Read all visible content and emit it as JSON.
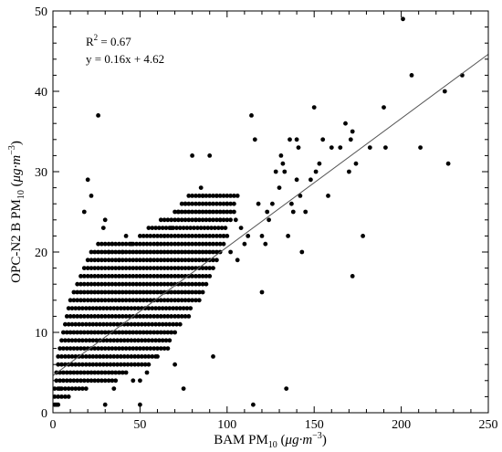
{
  "chart_data": {
    "type": "scatter",
    "xlabel": {
      "main": "BAM PM",
      "sub": "10",
      "unit_open": " (",
      "mu": "μ",
      "unit_mid": "g·m",
      "sup": "−3",
      "unit_close": ")"
    },
    "ylabel": {
      "main": "OPC-N2  B  PM",
      "sub": "10",
      "unit_open": " (",
      "mu": "μ",
      "unit_mid": "g·m",
      "sup": "−3",
      "unit_close": ")"
    },
    "xlim": [
      0,
      250
    ],
    "ylim": [
      0,
      50
    ],
    "xticks": [
      0,
      50,
      100,
      150,
      200,
      250
    ],
    "yticks": [
      0,
      10,
      20,
      30,
      40,
      50
    ],
    "xtick_labels": [
      "0",
      "50",
      "100",
      "150",
      "200",
      "250"
    ],
    "ytick_labels": [
      "0",
      "10",
      "20",
      "30",
      "40",
      "50"
    ],
    "annotation": {
      "r2_prefix": "R",
      "r2_sup": "2",
      "r2_value": " = 0.67",
      "equation": "y = 0.16x + 4.62"
    },
    "fit_line": {
      "slope": 0.16,
      "intercept": 4.62
    },
    "cluster_rows": [
      {
        "y": 1,
        "x_start": 1,
        "x_end": 4
      },
      {
        "y": 2,
        "x_start": 1,
        "x_end": 10
      },
      {
        "y": 3,
        "x_start": 1,
        "x_end": 20
      },
      {
        "y": 4,
        "x_start": 2,
        "x_end": 36
      },
      {
        "y": 5,
        "x_start": 2,
        "x_end": 42
      },
      {
        "y": 6,
        "x_start": 3,
        "x_end": 56
      },
      {
        "y": 7,
        "x_start": 3,
        "x_end": 60
      },
      {
        "y": 8,
        "x_start": 4,
        "x_end": 64
      },
      {
        "y": 9,
        "x_start": 5,
        "x_end": 68
      },
      {
        "y": 10,
        "x_start": 6,
        "x_end": 70
      },
      {
        "y": 11,
        "x_start": 7,
        "x_end": 74
      },
      {
        "y": 12,
        "x_start": 8,
        "x_end": 78
      },
      {
        "y": 13,
        "x_start": 9,
        "x_end": 80
      },
      {
        "y": 14,
        "x_start": 10,
        "x_end": 84
      },
      {
        "y": 15,
        "x_start": 12,
        "x_end": 86
      },
      {
        "y": 16,
        "x_start": 14,
        "x_end": 88
      },
      {
        "y": 17,
        "x_start": 16,
        "x_end": 90
      },
      {
        "y": 18,
        "x_start": 18,
        "x_end": 92
      },
      {
        "y": 19,
        "x_start": 20,
        "x_end": 94
      },
      {
        "y": 20,
        "x_start": 22,
        "x_end": 96
      },
      {
        "y": 21,
        "x_start": 26,
        "x_end": 98
      },
      {
        "y": 22,
        "x_start": 50,
        "x_end": 100
      },
      {
        "y": 23,
        "x_start": 55,
        "x_end": 100
      },
      {
        "y": 24,
        "x_start": 62,
        "x_end": 102
      },
      {
        "y": 25,
        "x_start": 70,
        "x_end": 104
      },
      {
        "y": 26,
        "x_start": 74,
        "x_end": 104
      },
      {
        "y": 27,
        "x_start": 78,
        "x_end": 106
      }
    ],
    "cluster_step": 2,
    "points": [
      {
        "x": 2,
        "y": 1
      },
      {
        "x": 4,
        "y": 3
      },
      {
        "x": 18,
        "y": 25
      },
      {
        "x": 20,
        "y": 29
      },
      {
        "x": 22,
        "y": 27
      },
      {
        "x": 26,
        "y": 37
      },
      {
        "x": 30,
        "y": 24
      },
      {
        "x": 32,
        "y": 20
      },
      {
        "x": 30,
        "y": 1
      },
      {
        "x": 50,
        "y": 4
      },
      {
        "x": 50,
        "y": 1
      },
      {
        "x": 42,
        "y": 22
      },
      {
        "x": 45,
        "y": 21
      },
      {
        "x": 38,
        "y": 19
      },
      {
        "x": 35,
        "y": 3
      },
      {
        "x": 75,
        "y": 3
      },
      {
        "x": 80,
        "y": 32
      },
      {
        "x": 90,
        "y": 32
      },
      {
        "x": 92,
        "y": 7
      },
      {
        "x": 85,
        "y": 28
      },
      {
        "x": 100,
        "y": 26
      },
      {
        "x": 105,
        "y": 24
      },
      {
        "x": 108,
        "y": 23
      },
      {
        "x": 110,
        "y": 21
      },
      {
        "x": 112,
        "y": 22
      },
      {
        "x": 114,
        "y": 37
      },
      {
        "x": 116,
        "y": 34
      },
      {
        "x": 118,
        "y": 26
      },
      {
        "x": 120,
        "y": 15
      },
      {
        "x": 115,
        "y": 1
      },
      {
        "x": 122,
        "y": 21
      },
      {
        "x": 120,
        "y": 22
      },
      {
        "x": 123,
        "y": 25
      },
      {
        "x": 124,
        "y": 24
      },
      {
        "x": 126,
        "y": 26
      },
      {
        "x": 128,
        "y": 30
      },
      {
        "x": 130,
        "y": 28
      },
      {
        "x": 131,
        "y": 32
      },
      {
        "x": 132,
        "y": 31
      },
      {
        "x": 133,
        "y": 30
      },
      {
        "x": 134,
        "y": 3
      },
      {
        "x": 135,
        "y": 22
      },
      {
        "x": 136,
        "y": 34
      },
      {
        "x": 137,
        "y": 26
      },
      {
        "x": 138,
        "y": 25
      },
      {
        "x": 140,
        "y": 29
      },
      {
        "x": 140,
        "y": 34
      },
      {
        "x": 141,
        "y": 33
      },
      {
        "x": 142,
        "y": 27
      },
      {
        "x": 143,
        "y": 20
      },
      {
        "x": 145,
        "y": 25
      },
      {
        "x": 148,
        "y": 29
      },
      {
        "x": 150,
        "y": 38
      },
      {
        "x": 151,
        "y": 30
      },
      {
        "x": 153,
        "y": 31
      },
      {
        "x": 155,
        "y": 34
      },
      {
        "x": 158,
        "y": 27
      },
      {
        "x": 160,
        "y": 33
      },
      {
        "x": 165,
        "y": 33
      },
      {
        "x": 168,
        "y": 36
      },
      {
        "x": 170,
        "y": 30
      },
      {
        "x": 171,
        "y": 34
      },
      {
        "x": 172,
        "y": 35
      },
      {
        "x": 172,
        "y": 17
      },
      {
        "x": 174,
        "y": 31
      },
      {
        "x": 178,
        "y": 22
      },
      {
        "x": 182,
        "y": 33
      },
      {
        "x": 190,
        "y": 38
      },
      {
        "x": 191,
        "y": 33
      },
      {
        "x": 201,
        "y": 49
      },
      {
        "x": 206,
        "y": 42
      },
      {
        "x": 211,
        "y": 33
      },
      {
        "x": 225,
        "y": 40
      },
      {
        "x": 227,
        "y": 31
      },
      {
        "x": 235,
        "y": 42
      },
      {
        "x": 29,
        "y": 23
      },
      {
        "x": 34,
        "y": 21
      },
      {
        "x": 40,
        "y": 20
      },
      {
        "x": 56,
        "y": 19
      },
      {
        "x": 60,
        "y": 21
      },
      {
        "x": 64,
        "y": 22
      },
      {
        "x": 68,
        "y": 23
      },
      {
        "x": 72,
        "y": 25
      },
      {
        "x": 76,
        "y": 26
      },
      {
        "x": 82,
        "y": 24
      },
      {
        "x": 86,
        "y": 27
      },
      {
        "x": 94,
        "y": 27
      },
      {
        "x": 96,
        "y": 24
      },
      {
        "x": 98,
        "y": 22
      },
      {
        "x": 102,
        "y": 20
      },
      {
        "x": 106,
        "y": 19
      },
      {
        "x": 66,
        "y": 8
      },
      {
        "x": 70,
        "y": 6
      },
      {
        "x": 60,
        "y": 7
      },
      {
        "x": 54,
        "y": 5
      },
      {
        "x": 46,
        "y": 4
      }
    ]
  }
}
